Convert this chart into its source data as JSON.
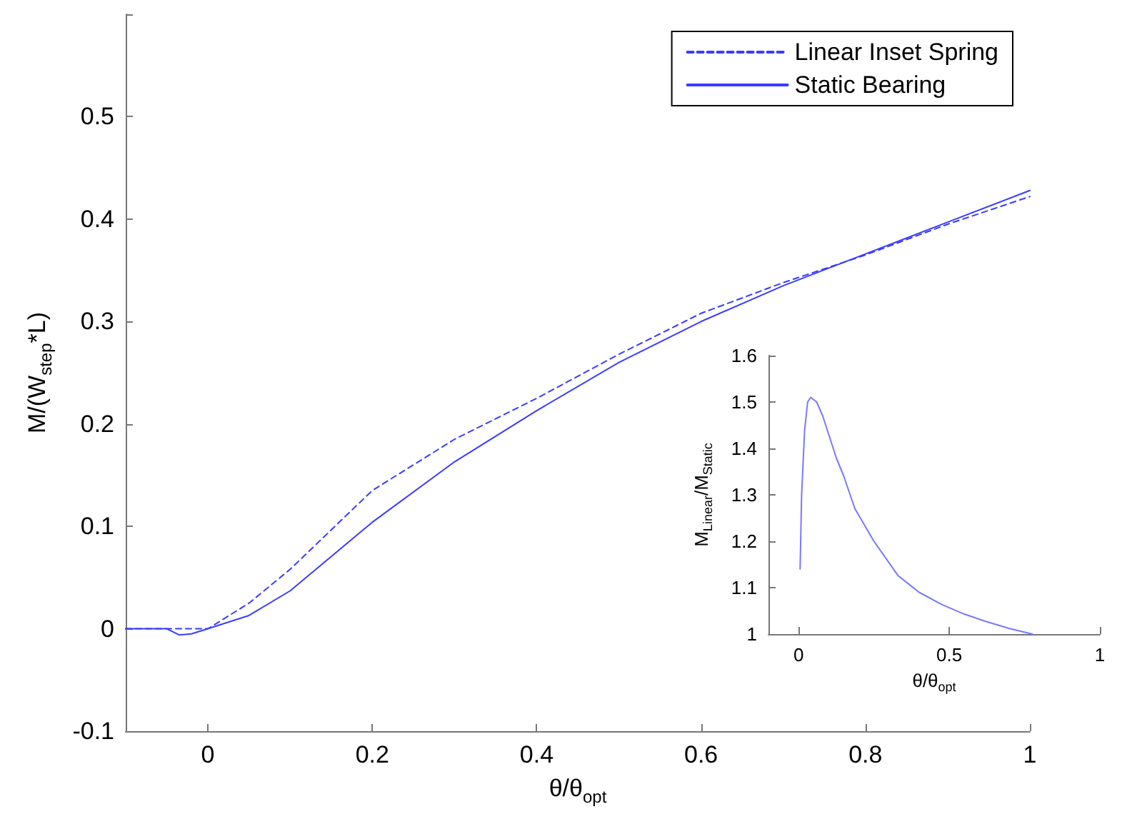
{
  "chart_data": [
    {
      "type": "line",
      "xlabel": "θ/θ$_{opt}$",
      "ylabel": "M/(W$_{step}$*L)",
      "xlim": [
        -0.1,
        1
      ],
      "xticks": [
        0,
        0.2,
        0.4,
        0.6,
        0.8,
        1
      ],
      "ylim": [
        -0.1,
        0.6
      ],
      "yticks": [
        -0.1,
        0,
        0.1,
        0.2,
        0.3,
        0.4,
        0.5,
        {
          "value": 0.6,
          "label": null
        }
      ],
      "legend": "top right",
      "marker": "none",
      "series": [
        {
          "name": "Linear Inset Spring",
          "color": "#3b3bff",
          "line_style": "dashed",
          "x": [
            -0.1,
            -0.05,
            0,
            0.05,
            0.1,
            0.2,
            0.3,
            0.4,
            0.5,
            0.6,
            0.7,
            0.8,
            0.9,
            1
          ],
          "values": [
            0,
            0,
            0,
            0.025,
            0.058,
            0.135,
            0.185,
            0.225,
            0.268,
            0.308,
            0.338,
            0.365,
            0.395,
            0.422
          ]
        },
        {
          "name": "Static Bearing",
          "color": "#3b3bff",
          "line_style": "solid",
          "x": [
            -0.1,
            -0.05,
            -0.035,
            -0.02,
            0,
            0.05,
            0.1,
            0.2,
            0.3,
            0.4,
            0.5,
            0.6,
            0.7,
            0.8,
            0.9,
            1
          ],
          "values": [
            0,
            0,
            -0.006,
            -0.005,
            0,
            0.013,
            0.037,
            0.104,
            0.163,
            0.213,
            0.26,
            0.3,
            0.335,
            0.366,
            0.397,
            0.428
          ]
        }
      ]
    },
    {
      "type": "line",
      "xlabel": "θ/θ$_{opt}$",
      "ylabel": "M$_{Linear}$/M$_{Static}$",
      "xlim": [
        -0.1,
        1
      ],
      "xticks": [
        0,
        0.5,
        1
      ],
      "ylim": [
        1,
        1.6
      ],
      "yticks": [
        1,
        1.1,
        1.2,
        1.3,
        1.4,
        1.5,
        1.6
      ],
      "marker": "none",
      "series": [
        {
          "color": "#7878ff",
          "x": [
            0.005,
            0.01,
            0.02,
            0.03,
            0.04,
            0.06,
            0.08,
            0.1,
            0.125,
            0.15,
            0.187,
            0.25,
            0.33,
            0.4,
            0.474,
            0.55,
            0.617,
            0.7,
            0.776
          ],
          "values": [
            1.14,
            1.3,
            1.44,
            1.5,
            1.51,
            1.5,
            1.47,
            1.43,
            1.38,
            1.34,
            1.27,
            1.2,
            1.126,
            1.09,
            1.064,
            1.043,
            1.028,
            1.012,
            1.0
          ]
        }
      ]
    }
  ]
}
